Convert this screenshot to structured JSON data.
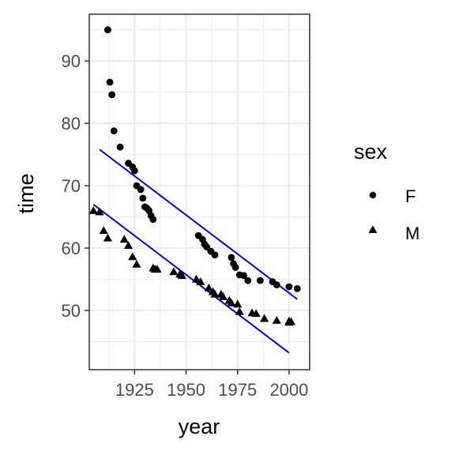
{
  "chart_data": {
    "type": "scatter",
    "title": "",
    "xlabel": "year",
    "ylabel": "time",
    "xlim": [
      1903,
      2010
    ],
    "ylim": [
      40.5,
      97.5
    ],
    "x_ticks": [
      1925,
      1950,
      1975,
      2000
    ],
    "y_ticks": [
      50,
      60,
      70,
      80,
      90
    ],
    "x_tick_labels": [
      "1925",
      "1950",
      "1975",
      "2000"
    ],
    "y_tick_labels": [
      "50",
      "60",
      "70",
      "80",
      "90"
    ],
    "grid": true,
    "legend": {
      "title": "sex",
      "position": "right",
      "labels": [
        "F",
        "M"
      ]
    },
    "fit_color": "#0000ff",
    "series": [
      {
        "name": "F",
        "marker": "circle",
        "points": [
          [
            1912,
            95.0
          ],
          [
            1912,
            95.0
          ],
          [
            1913,
            86.6
          ],
          [
            1914,
            84.6
          ],
          [
            1915,
            78.8
          ],
          [
            1918,
            76.2
          ],
          [
            1922,
            73.6
          ],
          [
            1924,
            73.0
          ],
          [
            1925,
            72.4
          ],
          [
            1926,
            70.0
          ],
          [
            1928,
            69.4
          ],
          [
            1929,
            68.0
          ],
          [
            1930,
            66.6
          ],
          [
            1931,
            66.4
          ],
          [
            1932,
            66.0
          ],
          [
            1933,
            65.2
          ],
          [
            1934,
            64.6
          ],
          [
            1956,
            62.0
          ],
          [
            1958,
            61.4
          ],
          [
            1959,
            60.6
          ],
          [
            1960,
            60.2
          ],
          [
            1962,
            59.5
          ],
          [
            1964,
            58.9
          ],
          [
            1972,
            58.5
          ],
          [
            1973,
            57.5
          ],
          [
            1974,
            56.9
          ],
          [
            1976,
            55.7
          ],
          [
            1978,
            55.6
          ],
          [
            1980,
            54.8
          ],
          [
            1986,
            54.8
          ],
          [
            1992,
            54.6
          ],
          [
            1994,
            54.1
          ],
          [
            2000,
            53.8
          ],
          [
            2004,
            53.5
          ]
        ]
      },
      {
        "name": "M",
        "marker": "triangle",
        "points": [
          [
            1905,
            66.0
          ],
          [
            1908,
            65.8
          ],
          [
            1910,
            62.8
          ],
          [
            1912,
            61.6
          ],
          [
            1920,
            61.4
          ],
          [
            1922,
            60.4
          ],
          [
            1924,
            58.6
          ],
          [
            1926,
            57.4
          ],
          [
            1934,
            56.8
          ],
          [
            1935,
            56.6
          ],
          [
            1936,
            56.6
          ],
          [
            1944,
            56.2
          ],
          [
            1947,
            55.8
          ],
          [
            1948,
            55.6
          ],
          [
            1955,
            55.0
          ],
          [
            1957,
            54.6
          ],
          [
            1961,
            53.6
          ],
          [
            1963,
            53.0
          ],
          [
            1964,
            52.6
          ],
          [
            1967,
            52.6
          ],
          [
            1968,
            52.2
          ],
          [
            1971,
            51.6
          ],
          [
            1972,
            51.2
          ],
          [
            1975,
            51.0
          ],
          [
            1976,
            49.8
          ],
          [
            1982,
            49.6
          ],
          [
            1984,
            49.5
          ],
          [
            1988,
            48.7
          ],
          [
            1994,
            48.4
          ],
          [
            2000,
            48.3
          ],
          [
            2001,
            48.2
          ],
          [
            2000,
            48.1
          ]
        ]
      }
    ],
    "fits": [
      {
        "series": "F",
        "x": [
          1908,
          2004
        ],
        "y": [
          75.8,
          51.8
        ]
      },
      {
        "series": "M",
        "x": [
          1905,
          2000
        ],
        "y": [
          67.0,
          43.2
        ]
      }
    ]
  }
}
